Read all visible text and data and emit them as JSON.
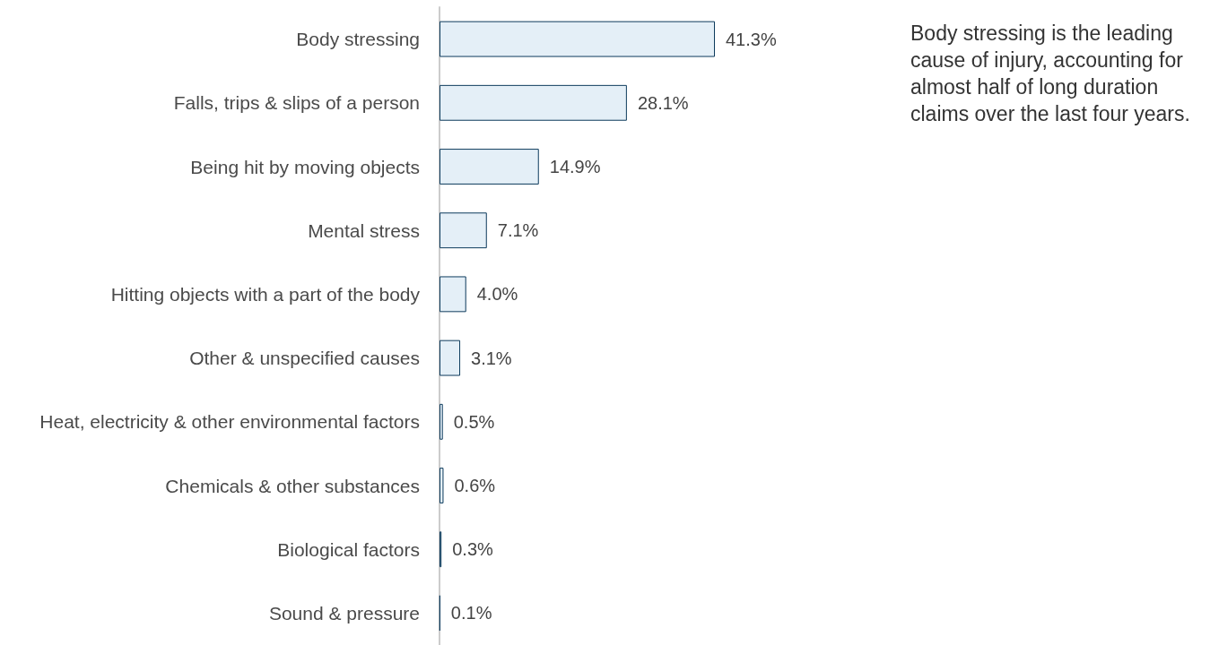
{
  "chart_data": {
    "type": "bar",
    "orientation": "horizontal",
    "categories": [
      "Body stressing",
      "Falls, trips & slips of a person",
      "Being hit by moving objects",
      "Mental stress",
      "Hitting objects with a part of the body",
      "Other & unspecified causes",
      "Heat, electricity & other environmental factors",
      "Chemicals & other substances",
      "Biological factors",
      "Sound & pressure"
    ],
    "values": [
      41.3,
      28.1,
      14.9,
      7.1,
      4.0,
      3.1,
      0.5,
      0.6,
      0.3,
      0.1
    ],
    "value_labels": [
      "41.3%",
      "28.1%",
      "14.9%",
      "7.1%",
      "4.0%",
      "3.1%",
      "0.5%",
      "0.6%",
      "0.3%",
      "0.1%"
    ],
    "colors": [
      "#e4eff7",
      "#e4eff7",
      "#e4eff7",
      "#e4eff7",
      "#e4eff7",
      "#e4eff7",
      "#e4eff7",
      "#e4eff7",
      "#e4eff7",
      "#0d3b5c"
    ],
    "annotations": [
      "Body stressing is the leading cause of injury, accounting for almost half of long duration claims over the last four years."
    ],
    "grid": false
  }
}
